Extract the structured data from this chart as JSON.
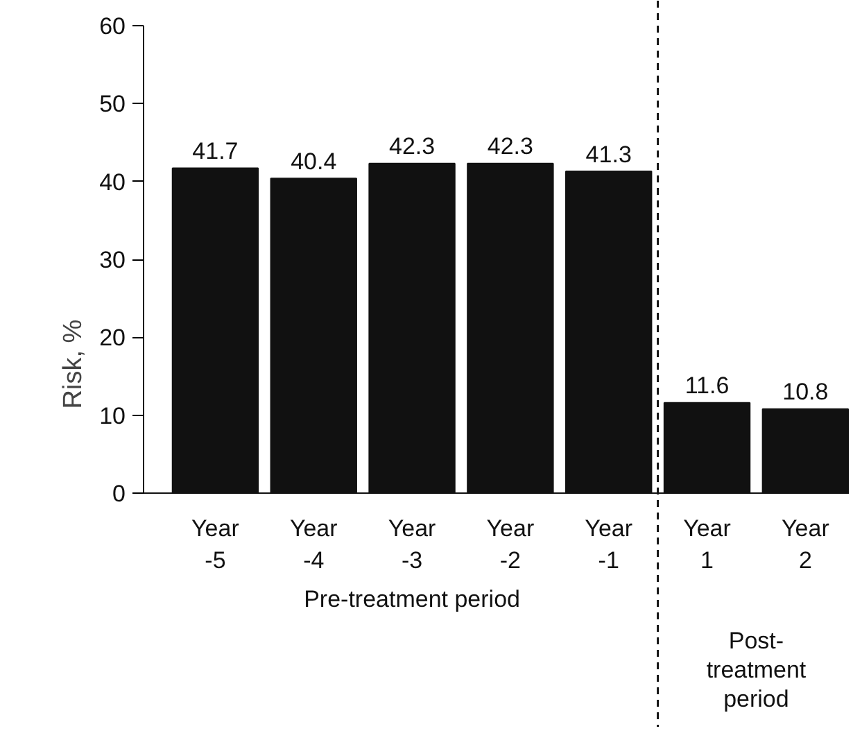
{
  "chart_data": {
    "type": "bar",
    "ylabel": "Risk, %",
    "categories": [
      "Year\n-5",
      "Year\n-4",
      "Year\n-3",
      "Year\n-2",
      "Year\n-1",
      "Year\n1",
      "Year\n2"
    ],
    "values": [
      41.7,
      40.4,
      42.3,
      42.3,
      41.3,
      11.6,
      10.8
    ],
    "color": "#111111",
    "data_labels": true,
    "ylim": [
      0,
      60
    ],
    "yticks": [
      0,
      10,
      20,
      30,
      40,
      50,
      60
    ],
    "grid": false,
    "annotations": [
      "Pre-treatment period",
      "Post-\ntreatment\nperiod"
    ]
  }
}
